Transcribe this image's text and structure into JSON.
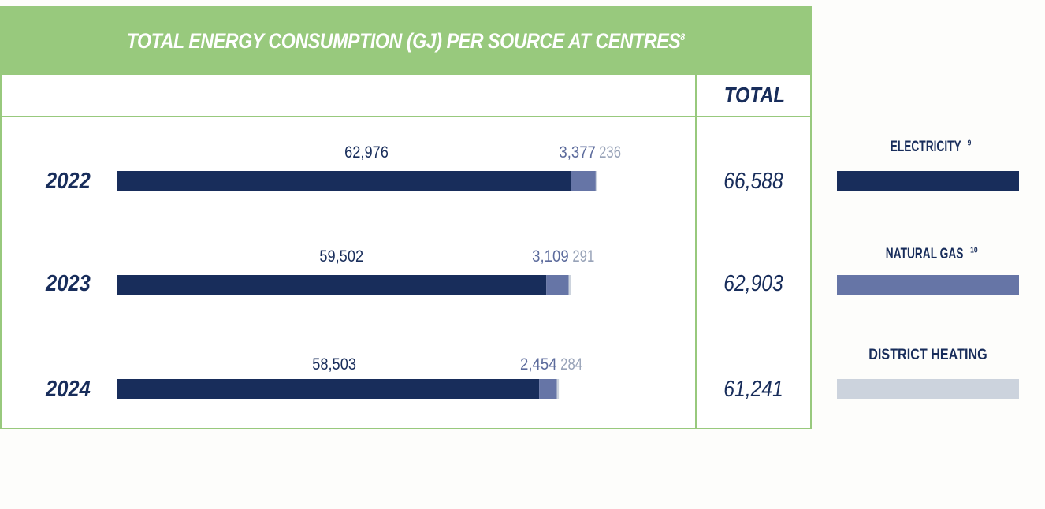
{
  "chart_data": {
    "type": "bar",
    "stacked": true,
    "orientation": "horizontal",
    "title": "TOTAL ENERGY CONSUMPTION (GJ) PER SOURCE AT CENTRES",
    "title_footnote": "8",
    "total_header": "TOTAL",
    "categories": [
      "2022",
      "2023",
      "2024"
    ],
    "series": [
      {
        "name": "ELECTRICITY",
        "footnote": "9",
        "color": "#182d5b",
        "values": [
          62976,
          59502,
          58503
        ],
        "labels": [
          "62,976",
          "59,502",
          "58,503"
        ],
        "label_color": "#182d5b"
      },
      {
        "name": "NATURAL GAS",
        "footnote": "10",
        "color": "#6675a6",
        "values": [
          3377,
          3109,
          2454
        ],
        "labels": [
          "3,377",
          "3,109",
          "2,454"
        ],
        "label_color": "#5c6b9c"
      },
      {
        "name": "DISTRICT HEATING",
        "footnote": "",
        "color": "#ccd3dd",
        "values": [
          236,
          291,
          284
        ],
        "labels": [
          "236",
          "291",
          "284"
        ],
        "label_color": "#98a3b8"
      }
    ],
    "totals": [
      "66,588",
      "62,903",
      "61,241"
    ],
    "legend_position": "right"
  }
}
